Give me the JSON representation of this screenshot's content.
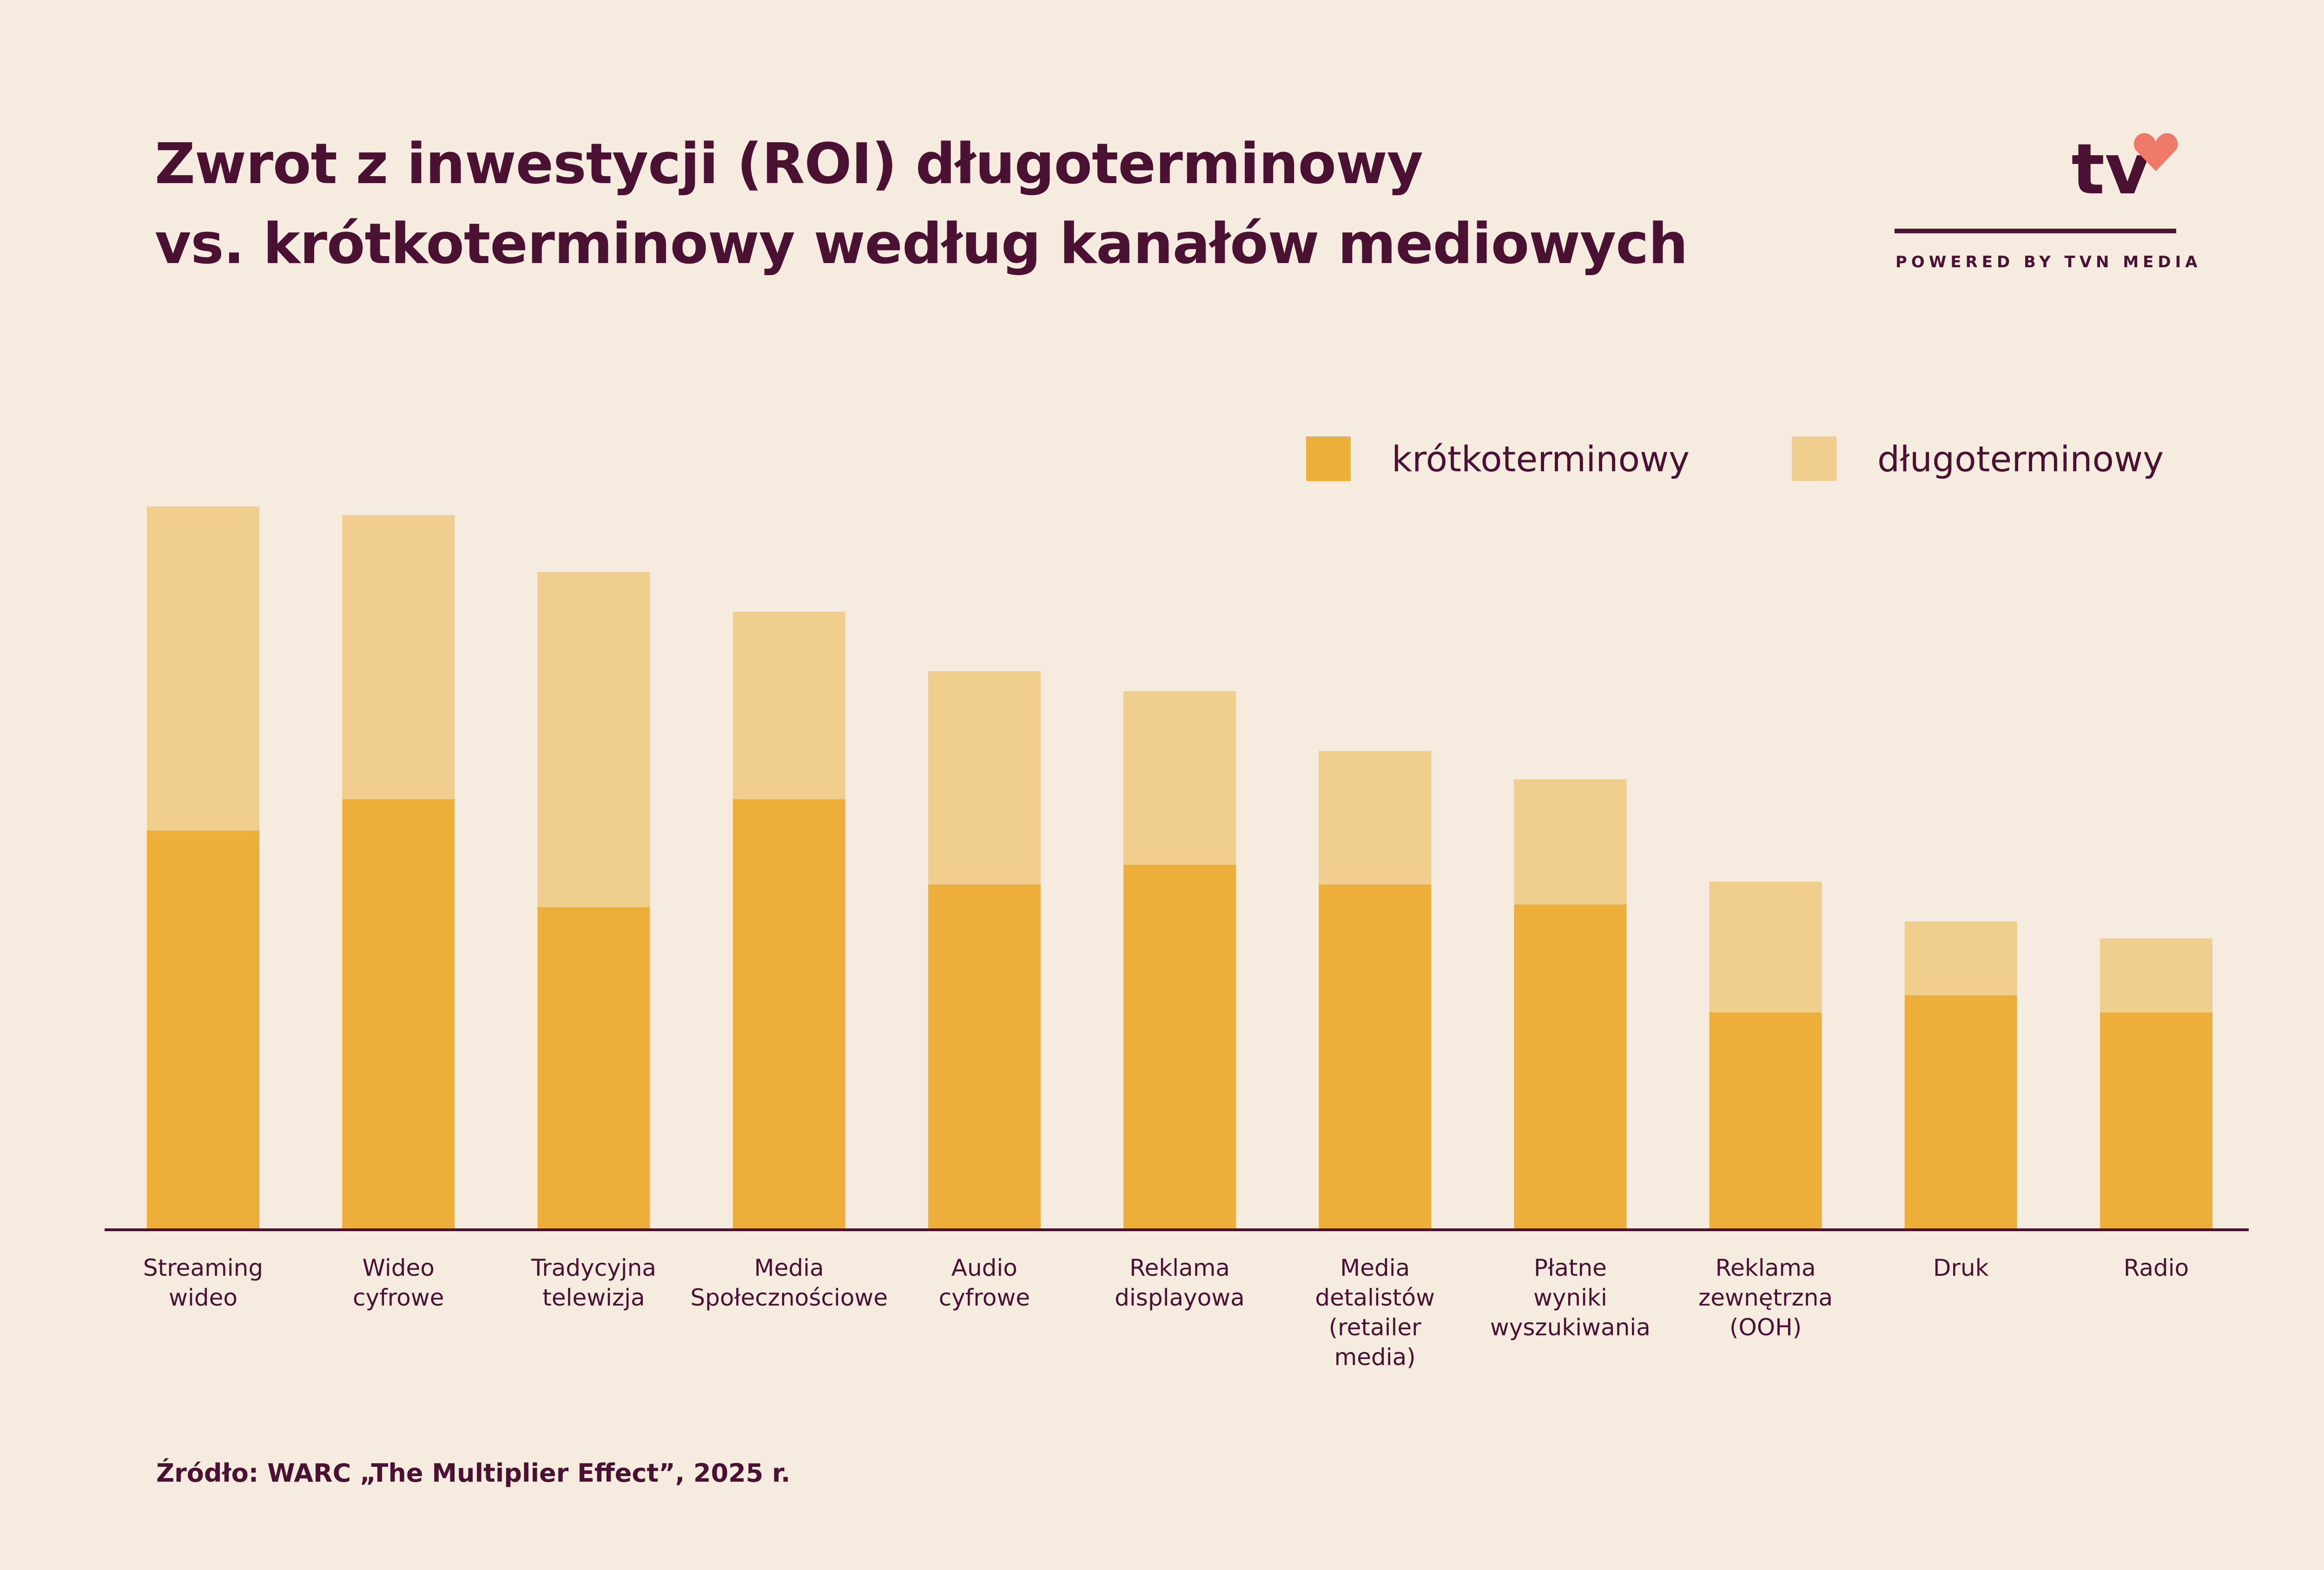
{
  "header": {
    "title_line1": "Zwrot z inwestycji (ROI) długoterminowy",
    "title_line2": "vs. krótkoterminowy według kanałów mediowych"
  },
  "logo": {
    "mark": "tv",
    "icon": "heart-icon",
    "tagline": "POWERED BY TVN MEDIA"
  },
  "footer": {
    "source": "Źródło: WARC „The Multiplier Effect”, 2025 r."
  },
  "colors": {
    "background": "#F5ECDF",
    "short_term": "#EDAF3A",
    "long_term": "#F0CE8E",
    "text": "#4A1133"
  },
  "chart_data": {
    "type": "bar",
    "stacked": true,
    "categories": [
      [
        "Streaming",
        "wideo"
      ],
      [
        "Wideo",
        "cyfrowe"
      ],
      [
        "Tradycyjna",
        "telewizja"
      ],
      [
        "Media",
        "Społecznościowe"
      ],
      [
        "Audio",
        "cyfrowe"
      ],
      [
        "Reklama",
        "displayowa"
      ],
      [
        "Media",
        "detalistów",
        "(retailer",
        "media)"
      ],
      [
        "Płatne",
        "wyniki",
        "wyszukiwania"
      ],
      [
        "Reklama",
        "zewnętrzna",
        "(OOH)"
      ],
      [
        "Druk"
      ],
      [
        "Radio"
      ]
    ],
    "series": [
      {
        "name": "krótkoterminowy",
        "color": "#EDAF3A",
        "values": [
          0.7,
          0.755,
          0.565,
          0.755,
          0.605,
          0.64,
          0.605,
          0.57,
          0.38,
          0.41,
          0.38
        ]
      },
      {
        "name": "długoterminowy",
        "color": "#F0CE8E",
        "values": [
          0.57,
          0.5,
          0.59,
          0.33,
          0.375,
          0.305,
          0.235,
          0.22,
          0.23,
          0.13,
          0.13
        ]
      }
    ],
    "ylim": [
      0,
      1.3
    ],
    "grid": false,
    "y_axis_visible": false,
    "legend_position": "top-right"
  }
}
